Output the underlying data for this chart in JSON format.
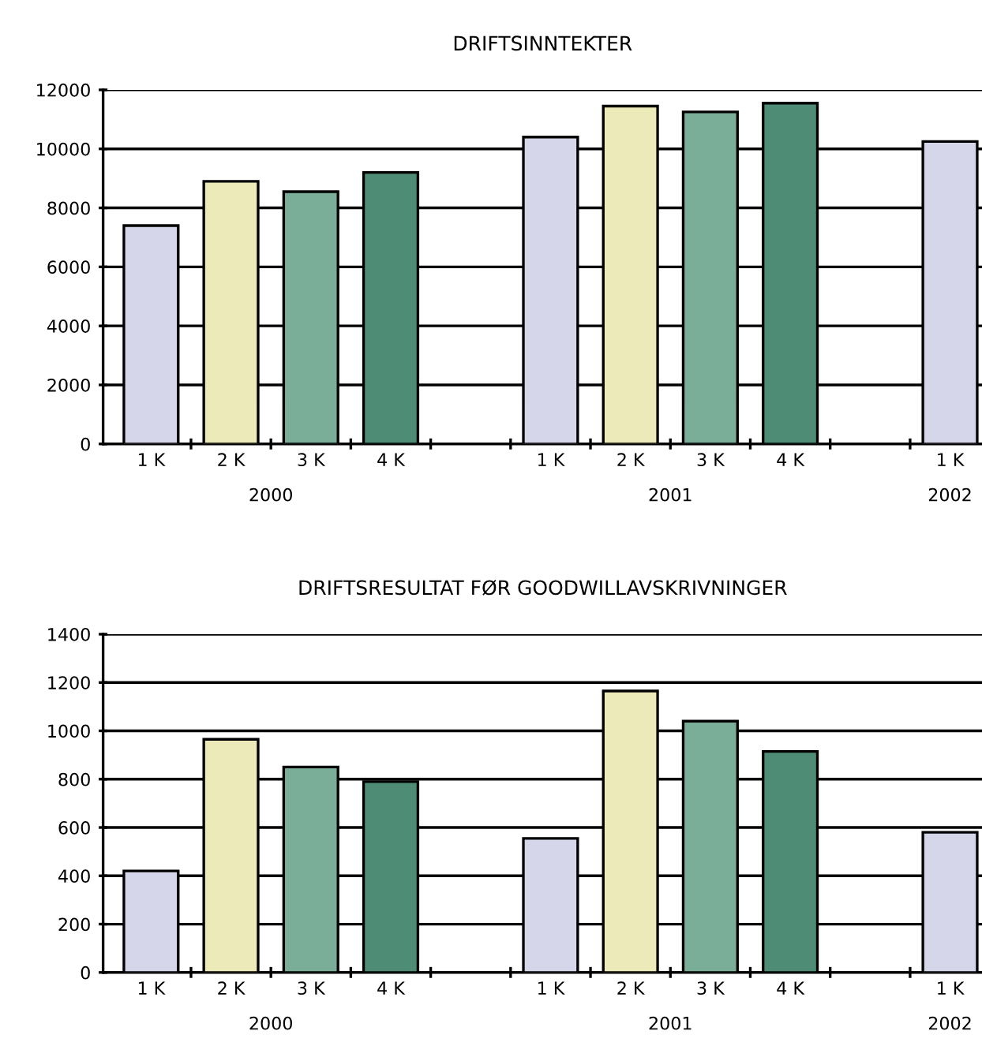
{
  "chart_data": [
    {
      "type": "bar",
      "title": "DRIFTSINNTEKTER",
      "categories": [
        "1 K",
        "2 K",
        "3 K",
        "4 K",
        null,
        "1 K",
        "2 K",
        "3 K",
        "4 K",
        null,
        "1 K"
      ],
      "values": [
        7400,
        8900,
        8550,
        9200,
        null,
        10400,
        11450,
        11250,
        11550,
        null,
        10250
      ],
      "colors": [
        "#d6d6ea",
        "#ebeab8",
        "#7aae98",
        "#4f8c76",
        null,
        "#d6d6ea",
        "#ebeab8",
        "#7aae98",
        "#4f8c76",
        null,
        "#d6d6ea"
      ],
      "annotations": [
        "2000",
        "2001",
        "2002"
      ],
      "ylim": [
        0,
        12000
      ],
      "yticks": [
        0,
        2000,
        4000,
        6000,
        8000,
        10000,
        12000
      ],
      "grid": "y"
    },
    {
      "type": "bar",
      "title": "DRIFTSRESULTAT FØR GOODWILLAVSKRIVNINGER",
      "categories": [
        "1 K",
        "2 K",
        "3 K",
        "4 K",
        null,
        "1 K",
        "2 K",
        "3 K",
        "4 K",
        null,
        "1 K"
      ],
      "values": [
        420,
        965,
        850,
        790,
        null,
        555,
        1165,
        1040,
        915,
        null,
        580
      ],
      "colors": [
        "#d6d6ea",
        "#ebeab8",
        "#7aae98",
        "#4f8c76",
        null,
        "#d6d6ea",
        "#ebeab8",
        "#7aae98",
        "#4f8c76",
        null,
        "#d6d6ea"
      ],
      "annotations": [
        "2000",
        "2001",
        "2002"
      ],
      "ylim": [
        0,
        1400
      ],
      "yticks": [
        0,
        200,
        400,
        600,
        800,
        1000,
        1200,
        1400
      ],
      "grid": "y"
    }
  ]
}
